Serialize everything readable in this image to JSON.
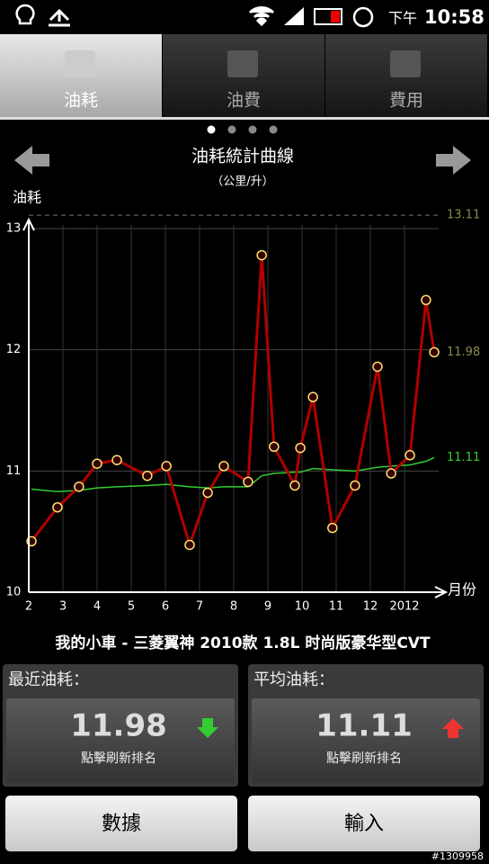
{
  "status_bar": {
    "time_prefix": "下午",
    "time": "10:58"
  },
  "tabs": [
    {
      "label": "油耗",
      "active": true
    },
    {
      "label": "油費",
      "active": false
    },
    {
      "label": "費用",
      "active": false
    }
  ],
  "chart_data": {
    "type": "line",
    "title": "油耗統計曲線",
    "subtitle": "（公里/升）",
    "y_label": "油耗",
    "x_label": "月份",
    "x": [
      2.08,
      2.84,
      3.47,
      4.0,
      4.58,
      5.47,
      6.03,
      6.71,
      7.24,
      7.71,
      8.42,
      8.82,
      9.18,
      9.79,
      9.95,
      10.32,
      10.89,
      11.55,
      12.21,
      12.61,
      13.16,
      13.63,
      13.87
    ],
    "series": [
      {
        "color": "#b00000",
        "marker": "#ffe070",
        "values": [
          10.42,
          10.7,
          10.87,
          11.06,
          11.09,
          10.96,
          11.04,
          10.39,
          10.82,
          11.04,
          10.91,
          12.78,
          11.2,
          10.88,
          11.19,
          11.61,
          10.53,
          10.88,
          11.86,
          10.98,
          11.13,
          12.41,
          11.98
        ]
      },
      {
        "color": "#33cc33",
        "values": [
          10.85,
          10.83,
          10.84,
          10.86,
          10.87,
          10.88,
          10.89,
          10.87,
          10.86,
          10.87,
          10.87,
          10.96,
          10.98,
          10.99,
          10.99,
          11.02,
          11.01,
          11.0,
          11.03,
          11.04,
          11.05,
          11.08,
          11.11
        ]
      }
    ],
    "xlim": [
      2,
      14
    ],
    "xticks": [
      2,
      3,
      4,
      5,
      6,
      7,
      8,
      9,
      10,
      11,
      12,
      {
        "value": 13,
        "label": "2012"
      }
    ],
    "ylim": [
      10,
      13.2
    ],
    "yticks": [
      10,
      11,
      12,
      13
    ],
    "grid": true,
    "reference_labels": [
      {
        "value": 13.11,
        "color": "#8a8a50",
        "dashed": true
      },
      {
        "value": 11.98,
        "color": "#8a8a50",
        "dashed": false
      },
      {
        "value": 11.11,
        "color": "#33cc33",
        "dashed": false
      }
    ]
  },
  "vehicle": "我的小車 - 三菱翼神  2010款 1.8L 时尚版豪华型CVT",
  "cards": [
    {
      "title": "最近油耗：",
      "value": "11.98",
      "caption": "點擊刷新排名",
      "trend": "down"
    },
    {
      "title": "平均油耗：",
      "value": "11.11",
      "caption": "點擊刷新排名",
      "trend": "up"
    }
  ],
  "buttons": [
    "數據",
    "輸入"
  ],
  "watermark": "#1309958"
}
